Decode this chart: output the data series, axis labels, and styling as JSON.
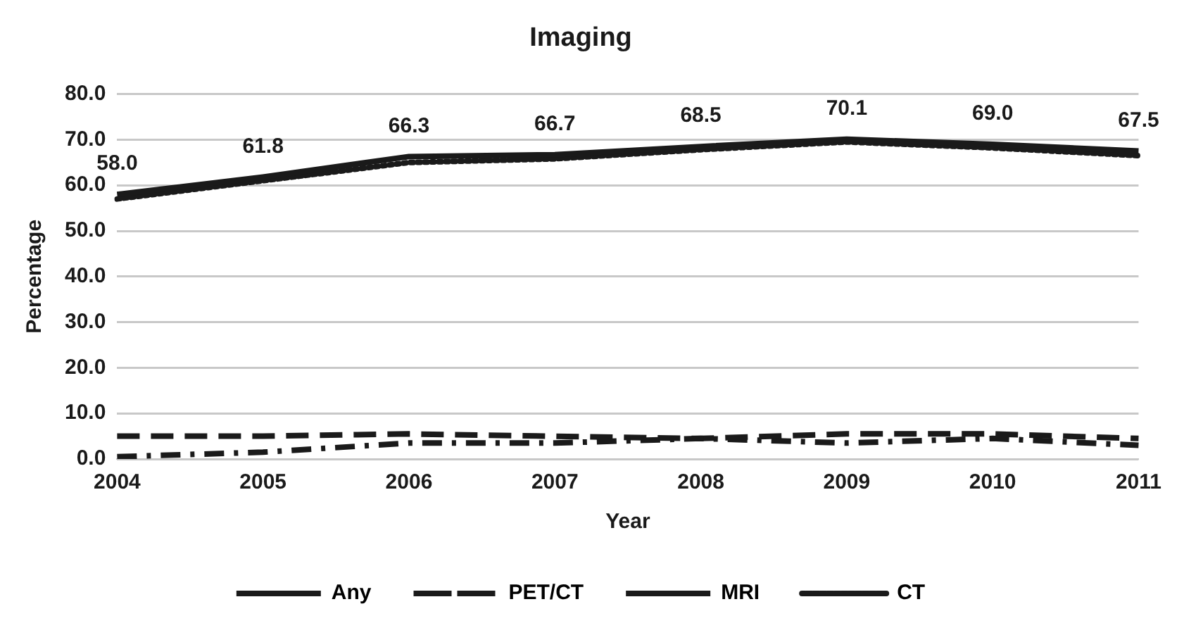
{
  "chart_data": {
    "type": "line",
    "title": "Imaging",
    "xlabel": "Year",
    "ylabel": "Percentage",
    "categories": [
      "2004",
      "2005",
      "2006",
      "2007",
      "2008",
      "2009",
      "2010",
      "2011"
    ],
    "series": [
      {
        "name": "Any",
        "color": "#1a1a1a",
        "line_style": "solid",
        "values": [
          58.0,
          61.8,
          66.3,
          66.7,
          68.5,
          70.1,
          69.0,
          67.5
        ],
        "value_labels": [
          "58.0",
          "61.8",
          "66.3",
          "66.7",
          "68.5",
          "70.1",
          "69.0",
          "67.5"
        ]
      },
      {
        "name": "PET/CT",
        "color": "#1a1a1a",
        "line_style": "dashdot",
        "values": [
          0.5,
          1.5,
          3.5,
          3.5,
          4.5,
          3.5,
          4.5,
          3.0
        ]
      },
      {
        "name": "MRI",
        "color": "#1a1a1a",
        "line_style": "dashed",
        "values": [
          5.0,
          5.0,
          5.5,
          5.0,
          4.5,
          5.5,
          5.5,
          4.5
        ]
      },
      {
        "name": "CT",
        "color": "#1a1a1a",
        "line_style": "dotted",
        "values": [
          57.0,
          61.0,
          65.0,
          65.8,
          67.8,
          69.5,
          68.2,
          66.5
        ]
      }
    ],
    "ylim": [
      0,
      80
    ],
    "yticks": [
      {
        "value": 0,
        "label": "0.0"
      },
      {
        "value": 10,
        "label": "10.0"
      },
      {
        "value": 20,
        "label": "20.0"
      },
      {
        "value": 30,
        "label": "30.0"
      },
      {
        "value": 40,
        "label": "40.0"
      },
      {
        "value": 50,
        "label": "50.0"
      },
      {
        "value": 60,
        "label": "60.0"
      },
      {
        "value": 70,
        "label": "70.0"
      },
      {
        "value": 80,
        "label": "80.0"
      }
    ],
    "grid": "y",
    "legend": "bottom",
    "marker": "none"
  }
}
